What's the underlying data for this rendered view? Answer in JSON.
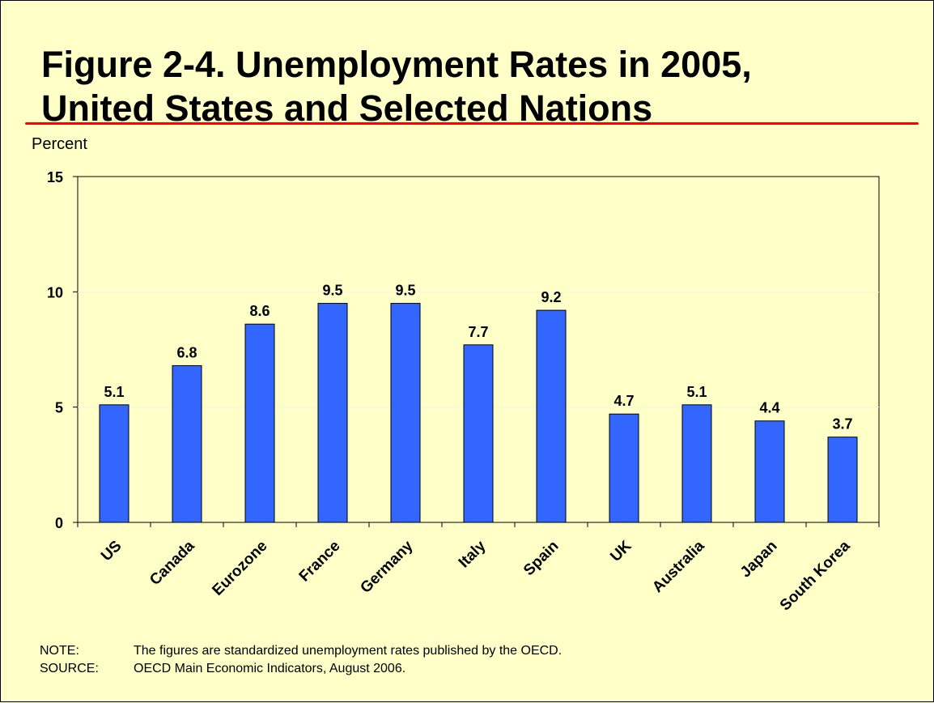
{
  "slide": {
    "title_line1": "Figure 2-4.  Unemployment Rates in 2005,",
    "title_line2": "United States and Selected Nations",
    "accent_color": "#ff0000",
    "background_color": "#ffffc8"
  },
  "notes": {
    "note_label": "NOTE:",
    "note_text": "The figures are standardized unemployment rates published by the OECD.",
    "source_label": "SOURCE:",
    "source_text": "OECD Main Economic Indicators, August 2006."
  },
  "chart_data": {
    "type": "bar",
    "ylabel": "Percent",
    "xlabel": "",
    "ylim": [
      0,
      15
    ],
    "yticks": [
      0,
      5,
      10,
      15
    ],
    "grid": true,
    "bar_color": "#3366ff",
    "categories": [
      "US",
      "Canada",
      "Eurozone",
      "France",
      "Germany",
      "Italy",
      "Spain",
      "UK",
      "Australia",
      "Japan",
      "South Korea"
    ],
    "values": [
      5.1,
      6.8,
      8.6,
      9.5,
      9.5,
      7.7,
      9.2,
      4.7,
      5.1,
      4.4,
      3.7
    ],
    "data_labels": [
      "5.1",
      "6.8",
      "8.6",
      "9.5",
      "9.5",
      "7.7",
      "9.2",
      "4.7",
      "5.1",
      "4.4",
      "3.7"
    ]
  }
}
